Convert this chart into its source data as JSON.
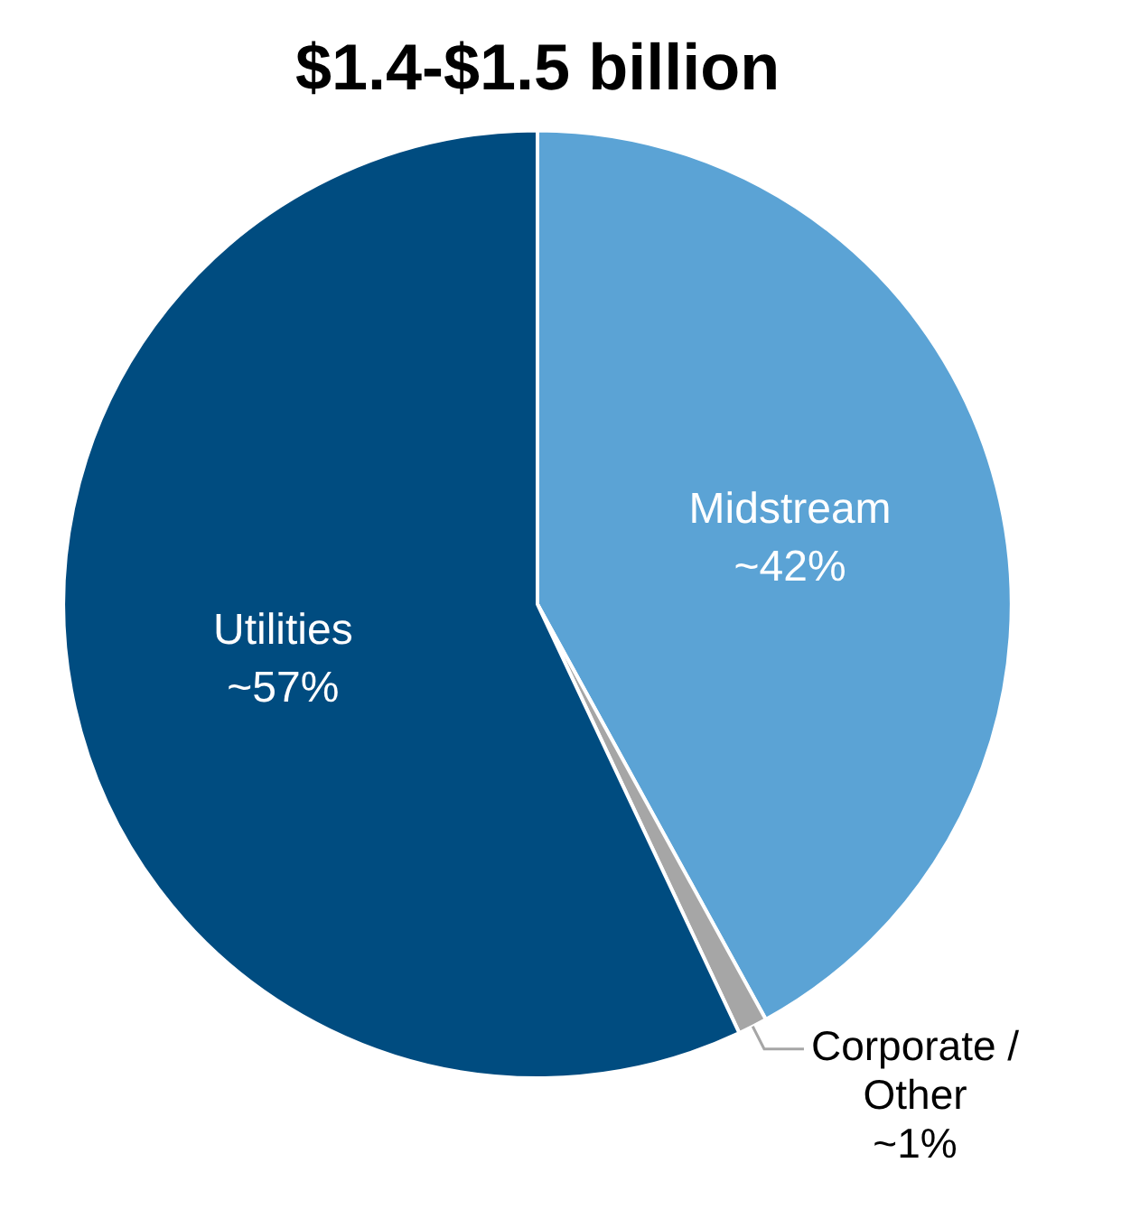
{
  "chart_data": {
    "type": "pie",
    "title": "$1.4-$1.5 billion",
    "categories": [
      "Midstream",
      "Corporate / Other",
      "Utilities"
    ],
    "values": [
      42,
      1,
      57
    ],
    "colors": [
      "#5ba3d5",
      "#a6a6a6",
      "#004c80"
    ],
    "value_labels": [
      "~42%",
      "~1%",
      "~57%"
    ],
    "legend": false
  }
}
